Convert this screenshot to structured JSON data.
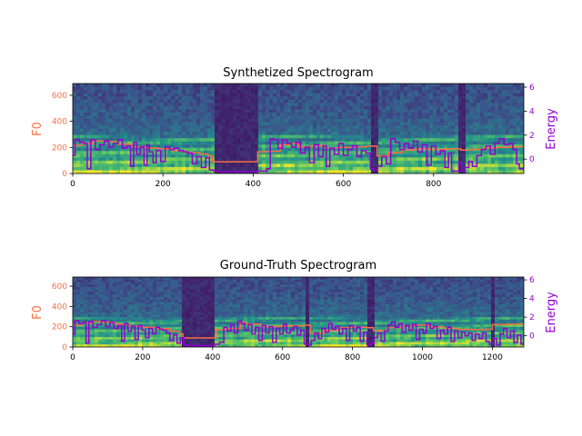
{
  "colors": {
    "f0_line": "#F86F45",
    "energy_line": "#9400D3",
    "spectrogram_palette": [
      "#440154",
      "#3b528b",
      "#21918c",
      "#5ec962",
      "#fde725"
    ]
  },
  "chart_data": [
    {
      "type": "heatmap",
      "title": "Synthetized Spectrogram",
      "colormap": "viridis",
      "xlim": [
        0,
        1000
      ],
      "x_ticks": [
        0,
        200,
        400,
        600,
        800
      ],
      "ylim_f0": [
        0,
        690
      ],
      "f0_ticks": [
        0,
        200,
        400,
        600
      ],
      "ylabel_left": "F0",
      "ylim_energy": [
        -1.2,
        6.3
      ],
      "energy_ticks": [
        0,
        2,
        4,
        6
      ],
      "ylabel_right": "Energy",
      "silence": [
        [
          315,
          410
        ],
        [
          660,
          676
        ],
        [
          855,
          872
        ]
      ],
      "f0_series": [
        [
          0,
          215
        ],
        [
          20,
          230
        ],
        [
          45,
          250
        ],
        [
          70,
          245
        ],
        [
          100,
          225
        ],
        [
          130,
          205
        ],
        [
          160,
          195
        ],
        [
          190,
          190
        ],
        [
          220,
          175
        ],
        [
          250,
          160
        ],
        [
          280,
          150
        ],
        [
          300,
          135
        ],
        [
          310,
          90
        ],
        [
          405,
          90
        ],
        [
          410,
          165
        ],
        [
          430,
          170
        ],
        [
          460,
          220
        ],
        [
          480,
          230
        ],
        [
          500,
          205
        ],
        [
          530,
          215
        ],
        [
          560,
          195
        ],
        [
          590,
          200
        ],
        [
          620,
          205
        ],
        [
          650,
          210
        ],
        [
          675,
          135
        ],
        [
          700,
          160
        ],
        [
          730,
          180
        ],
        [
          760,
          190
        ],
        [
          790,
          185
        ],
        [
          830,
          190
        ],
        [
          860,
          180
        ],
        [
          880,
          185
        ],
        [
          910,
          195
        ],
        [
          940,
          200
        ],
        [
          970,
          205
        ],
        [
          1000,
          210
        ]
      ],
      "energy_series": [
        [
          0,
          0.3
        ],
        [
          5,
          1.6
        ],
        [
          15,
          1.4
        ],
        [
          25,
          1.3
        ],
        [
          32,
          -0.8
        ],
        [
          40,
          1.6
        ],
        [
          50,
          0.8
        ],
        [
          60,
          1.2
        ],
        [
          70,
          1.5
        ],
        [
          80,
          1.0
        ],
        [
          90,
          1.3
        ],
        [
          100,
          1.6
        ],
        [
          110,
          0.9
        ],
        [
          120,
          1.1
        ],
        [
          128,
          -0.6
        ],
        [
          135,
          1.4
        ],
        [
          142,
          0.4
        ],
        [
          150,
          1.0
        ],
        [
          158,
          -0.5
        ],
        [
          165,
          1.2
        ],
        [
          170,
          0.6
        ],
        [
          178,
          -0.3
        ],
        [
          185,
          0.7
        ],
        [
          195,
          -0.2
        ],
        [
          205,
          1.0
        ],
        [
          215,
          0.8
        ],
        [
          225,
          0.9
        ],
        [
          235,
          0.7
        ],
        [
          245,
          0.6
        ],
        [
          255,
          0.5
        ],
        [
          265,
          -0.4
        ],
        [
          275,
          0.2
        ],
        [
          285,
          -0.7
        ],
        [
          295,
          0.1
        ],
        [
          303,
          -0.9
        ],
        [
          312,
          -1.0
        ],
        [
          320,
          -1.05
        ],
        [
          400,
          -1.05
        ],
        [
          410,
          -1.0
        ],
        [
          430,
          -0.8
        ],
        [
          438,
          1.7
        ],
        [
          446,
          1.6
        ],
        [
          455,
          0.9
        ],
        [
          465,
          1.6
        ],
        [
          475,
          1.3
        ],
        [
          485,
          1.0
        ],
        [
          495,
          1.4
        ],
        [
          505,
          0.5
        ],
        [
          515,
          1.0
        ],
        [
          525,
          -0.3
        ],
        [
          535,
          1.2
        ],
        [
          545,
          0.2
        ],
        [
          555,
          1.1
        ],
        [
          562,
          -0.6
        ],
        [
          570,
          0.9
        ],
        [
          580,
          0.4
        ],
        [
          590,
          1.3
        ],
        [
          600,
          0.3
        ],
        [
          610,
          0.8
        ],
        [
          620,
          1.1
        ],
        [
          630,
          0.2
        ],
        [
          640,
          0.7
        ],
        [
          650,
          0.5
        ],
        [
          660,
          -0.8
        ],
        [
          668,
          -0.95
        ],
        [
          676,
          -0.6
        ],
        [
          685,
          0.2
        ],
        [
          695,
          -0.4
        ],
        [
          705,
          1.7
        ],
        [
          715,
          1.4
        ],
        [
          725,
          0.8
        ],
        [
          735,
          1.3
        ],
        [
          745,
          0.9
        ],
        [
          755,
          1.5
        ],
        [
          765,
          0.6
        ],
        [
          775,
          1.2
        ],
        [
          785,
          -0.5
        ],
        [
          795,
          1.1
        ],
        [
          805,
          0.4
        ],
        [
          815,
          0.7
        ],
        [
          825,
          -0.7
        ],
        [
          833,
          0.5
        ],
        [
          840,
          -1.0
        ],
        [
          850,
          -1.0
        ],
        [
          856,
          -0.3
        ],
        [
          862,
          -1.0
        ],
        [
          870,
          -0.7
        ],
        [
          878,
          -0.2
        ],
        [
          886,
          -0.6
        ],
        [
          896,
          0.3
        ],
        [
          906,
          0.8
        ],
        [
          916,
          1.1
        ],
        [
          926,
          0.4
        ],
        [
          936,
          1.3
        ],
        [
          946,
          1.7
        ],
        [
          956,
          1.2
        ],
        [
          966,
          1.3
        ],
        [
          976,
          0.8
        ],
        [
          984,
          -0.4
        ],
        [
          990,
          -0.8
        ],
        [
          1000,
          1.7
        ]
      ]
    },
    {
      "type": "heatmap",
      "title": "Ground-Truth Spectrogram",
      "colormap": "viridis",
      "xlim": [
        0,
        1290
      ],
      "x_ticks": [
        0,
        200,
        400,
        600,
        800,
        1000,
        1200
      ],
      "ylim_f0": [
        0,
        690
      ],
      "f0_ticks": [
        0,
        200,
        400,
        600
      ],
      "ylabel_left": "F0",
      "ylim_energy": [
        -1.2,
        6.3
      ],
      "energy_ticks": [
        0,
        2,
        4,
        6
      ],
      "ylabel_right": "Energy",
      "silence": [
        [
          315,
          405
        ],
        [
          665,
          680
        ],
        [
          840,
          860
        ],
        [
          1195,
          1210
        ]
      ],
      "f0_series": [
        [
          0,
          215
        ],
        [
          25,
          235
        ],
        [
          55,
          250
        ],
        [
          85,
          245
        ],
        [
          120,
          225
        ],
        [
          160,
          205
        ],
        [
          200,
          195
        ],
        [
          240,
          180
        ],
        [
          280,
          155
        ],
        [
          305,
          130
        ],
        [
          315,
          90
        ],
        [
          400,
          90
        ],
        [
          410,
          170
        ],
        [
          440,
          180
        ],
        [
          480,
          240
        ],
        [
          500,
          225
        ],
        [
          540,
          200
        ],
        [
          580,
          205
        ],
        [
          620,
          210
        ],
        [
          660,
          215
        ],
        [
          680,
          135
        ],
        [
          720,
          165
        ],
        [
          760,
          190
        ],
        [
          800,
          195
        ],
        [
          840,
          190
        ],
        [
          860,
          160
        ],
        [
          900,
          190
        ],
        [
          940,
          210
        ],
        [
          980,
          215
        ],
        [
          1020,
          200
        ],
        [
          1060,
          185
        ],
        [
          1100,
          175
        ],
        [
          1140,
          170
        ],
        [
          1180,
          175
        ],
        [
          1200,
          220
        ],
        [
          1240,
          225
        ],
        [
          1290,
          200
        ]
      ],
      "energy_series": [
        [
          0,
          0.2
        ],
        [
          6,
          1.6
        ],
        [
          18,
          1.3
        ],
        [
          30,
          1.4
        ],
        [
          38,
          -0.8
        ],
        [
          46,
          1.5
        ],
        [
          58,
          0.9
        ],
        [
          70,
          1.2
        ],
        [
          82,
          1.6
        ],
        [
          94,
          1.0
        ],
        [
          106,
          1.4
        ],
        [
          118,
          0.8
        ],
        [
          130,
          1.1
        ],
        [
          140,
          -0.6
        ],
        [
          148,
          1.3
        ],
        [
          158,
          0.5
        ],
        [
          168,
          1.0
        ],
        [
          178,
          -0.4
        ],
        [
          188,
          1.1
        ],
        [
          198,
          0.6
        ],
        [
          208,
          -0.2
        ],
        [
          218,
          0.8
        ],
        [
          228,
          0.2
        ],
        [
          238,
          0.9
        ],
        [
          248,
          0.7
        ],
        [
          258,
          0.6
        ],
        [
          268,
          0.3
        ],
        [
          278,
          -0.5
        ],
        [
          288,
          0.1
        ],
        [
          298,
          -0.8
        ],
        [
          308,
          -0.2
        ],
        [
          318,
          -1.0
        ],
        [
          330,
          -1.05
        ],
        [
          395,
          -1.05
        ],
        [
          405,
          -0.9
        ],
        [
          420,
          -0.7
        ],
        [
          432,
          0.9
        ],
        [
          442,
          0.5
        ],
        [
          452,
          1.2
        ],
        [
          462,
          0.3
        ],
        [
          472,
          1.6
        ],
        [
          482,
          1.3
        ],
        [
          492,
          0.6
        ],
        [
          502,
          1.2
        ],
        [
          512,
          0.2
        ],
        [
          522,
          0.9
        ],
        [
          532,
          -0.5
        ],
        [
          542,
          1.1
        ],
        [
          552,
          0.3
        ],
        [
          562,
          1.0
        ],
        [
          572,
          -0.7
        ],
        [
          582,
          0.8
        ],
        [
          592,
          0.2
        ],
        [
          602,
          1.2
        ],
        [
          612,
          0.3
        ],
        [
          622,
          0.7
        ],
        [
          632,
          1.0
        ],
        [
          642,
          0.1
        ],
        [
          652,
          0.6
        ],
        [
          662,
          -0.9
        ],
        [
          672,
          -1.0
        ],
        [
          682,
          -0.5
        ],
        [
          692,
          0.3
        ],
        [
          702,
          -0.3
        ],
        [
          712,
          0.8
        ],
        [
          722,
          0.4
        ],
        [
          732,
          1.3
        ],
        [
          742,
          0.7
        ],
        [
          752,
          1.0
        ],
        [
          762,
          0.2
        ],
        [
          772,
          0.8
        ],
        [
          782,
          -0.5
        ],
        [
          792,
          1.1
        ],
        [
          802,
          0.5
        ],
        [
          812,
          0.9
        ],
        [
          822,
          -0.6
        ],
        [
          832,
          0.4
        ],
        [
          842,
          -1.0
        ],
        [
          852,
          -0.8
        ],
        [
          862,
          -0.2
        ],
        [
          872,
          0.3
        ],
        [
          882,
          -0.6
        ],
        [
          892,
          0.5
        ],
        [
          902,
          1.2
        ],
        [
          912,
          1.5
        ],
        [
          922,
          0.9
        ],
        [
          932,
          1.3
        ],
        [
          942,
          0.4
        ],
        [
          952,
          1.1
        ],
        [
          962,
          0.6
        ],
        [
          972,
          1.2
        ],
        [
          982,
          -0.4
        ],
        [
          992,
          0.7
        ],
        [
          1002,
          0.3
        ],
        [
          1012,
          1.3
        ],
        [
          1022,
          0.8
        ],
        [
          1032,
          1.0
        ],
        [
          1042,
          -0.3
        ],
        [
          1052,
          0.6
        ],
        [
          1062,
          0.2
        ],
        [
          1072,
          0.9
        ],
        [
          1082,
          -0.6
        ],
        [
          1092,
          0.5
        ],
        [
          1102,
          -0.2
        ],
        [
          1112,
          0.4
        ],
        [
          1122,
          0.0
        ],
        [
          1132,
          0.3
        ],
        [
          1142,
          -0.5
        ],
        [
          1152,
          0.2
        ],
        [
          1162,
          -0.3
        ],
        [
          1172,
          0.3
        ],
        [
          1182,
          -0.6
        ],
        [
          1192,
          -0.9
        ],
        [
          1202,
          -0.3
        ],
        [
          1212,
          -1.0
        ],
        [
          1222,
          0.2
        ],
        [
          1232,
          0.8
        ],
        [
          1242,
          -0.2
        ],
        [
          1252,
          0.5
        ],
        [
          1262,
          -0.7
        ],
        [
          1272,
          0.1
        ],
        [
          1282,
          -0.9
        ],
        [
          1290,
          0.3
        ]
      ]
    }
  ]
}
